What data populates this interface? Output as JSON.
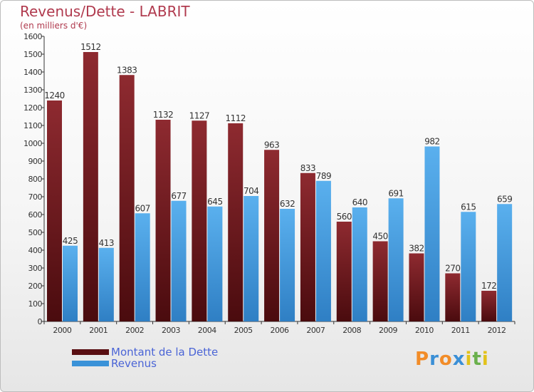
{
  "chart_data": {
    "type": "bar",
    "title": "Revenus/Dette - LABRIT",
    "subtitle": "(en milliers d'€)",
    "categories": [
      "2000",
      "2001",
      "2002",
      "2003",
      "2004",
      "2005",
      "2006",
      "2007",
      "2008",
      "2009",
      "2010",
      "2011",
      "2012"
    ],
    "series": [
      {
        "name": "Montant de la Dette",
        "color": "#7a1e22",
        "values": [
          1240,
          1512,
          1383,
          1132,
          1127,
          1112,
          963,
          833,
          560,
          450,
          382,
          270,
          172
        ]
      },
      {
        "name": "Revenus",
        "color": "#4aa3e4",
        "values": [
          425,
          413,
          607,
          677,
          645,
          704,
          632,
          789,
          640,
          691,
          982,
          615,
          659
        ]
      }
    ],
    "ylim": [
      0,
      1600
    ],
    "ytick_step": 100,
    "grid": false,
    "legend_position": "bottom-left"
  },
  "logo": {
    "letters": [
      "P",
      "r",
      "o",
      "x",
      "i",
      "t",
      "i"
    ],
    "colors": [
      "#f28c28",
      "#3a8fd6",
      "#f28c28",
      "#3a8fd6",
      "#e2c21a",
      "#6ab04c",
      "#e2c21a"
    ]
  }
}
